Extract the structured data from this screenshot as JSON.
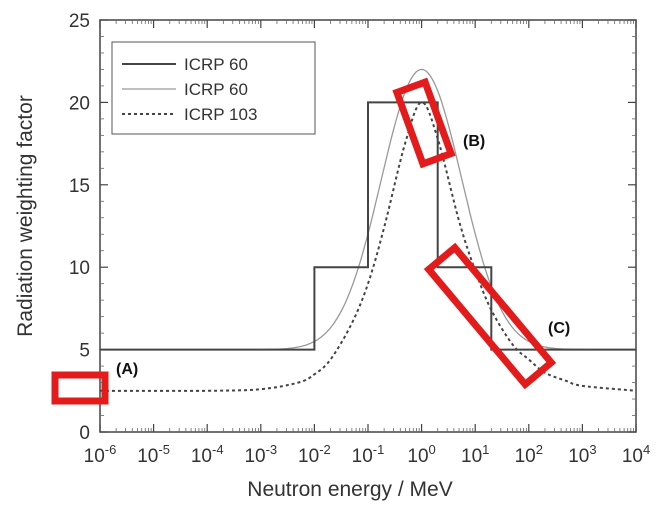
{
  "chart_data": {
    "type": "line",
    "title": "",
    "xlabel": "Neutron energy / MeV",
    "ylabel": "Radiation weighting factor",
    "x_scale": "log",
    "xlim": [
      1e-06,
      10000.0
    ],
    "ylim": [
      0,
      25
    ],
    "x_ticks": [
      {
        "value": 1e-06,
        "base": "10",
        "exp": "-6"
      },
      {
        "value": 1e-05,
        "base": "10",
        "exp": "-5"
      },
      {
        "value": 0.0001,
        "base": "10",
        "exp": "-4"
      },
      {
        "value": 0.001,
        "base": "10",
        "exp": "-3"
      },
      {
        "value": 0.01,
        "base": "10",
        "exp": "-2"
      },
      {
        "value": 0.1,
        "base": "10",
        "exp": "-1"
      },
      {
        "value": 1,
        "base": "10",
        "exp": "0"
      },
      {
        "value": 10,
        "base": "10",
        "exp": "1"
      },
      {
        "value": 100,
        "base": "10",
        "exp": "2"
      },
      {
        "value": 1000,
        "base": "10",
        "exp": "3"
      },
      {
        "value": 10000,
        "base": "10",
        "exp": "4"
      }
    ],
    "y_ticks": [
      0,
      5,
      10,
      15,
      20,
      25
    ],
    "grid": false,
    "legend": {
      "position": "top-left",
      "entries": [
        {
          "label": "ICRP 60",
          "style": "solid",
          "color": "#444444"
        },
        {
          "label": "ICRP 60",
          "style": "solid",
          "color": "#999999"
        },
        {
          "label": "ICRP 103",
          "style": "dotted",
          "color": "#444444"
        }
      ]
    },
    "series": [
      {
        "label": "ICRP 60",
        "kind": "step",
        "color": "#444444",
        "x": [
          1e-06,
          0.01,
          0.01,
          0.1,
          0.1,
          2,
          2,
          20,
          20,
          10000
        ],
        "y": [
          5,
          5,
          10,
          10,
          20,
          20,
          10,
          10,
          5,
          5
        ]
      },
      {
        "label": "ICRP 60",
        "kind": "continuous",
        "color": "#999999",
        "formula": "5 + 17*exp(-(ln(E))^2/6)",
        "x": [
          1e-06,
          0.001,
          0.005,
          0.01,
          0.02,
          0.05,
          0.1,
          0.2,
          0.5,
          1,
          2,
          5,
          10,
          20,
          50,
          100,
          1000,
          10000
        ],
        "y": [
          5.0,
          5.0,
          5.1,
          5.3,
          5.9,
          7.6,
          10.0,
          13.2,
          18.6,
          21.9,
          18.6,
          13.2,
          10.0,
          7.6,
          5.9,
          5.3,
          5.0,
          5.0
        ]
      },
      {
        "label": "ICRP 103",
        "kind": "continuous",
        "color": "#444444",
        "x": [
          1e-06,
          0.0001,
          0.001,
          0.005,
          0.01,
          0.02,
          0.05,
          0.1,
          0.2,
          0.5,
          1,
          2,
          5,
          10,
          20,
          50,
          100,
          200,
          500,
          1000,
          10000
        ],
        "y": [
          2.5,
          2.5,
          2.6,
          3.0,
          3.5,
          4.4,
          6.6,
          9.0,
          12.4,
          17.6,
          20.0,
          17.8,
          12.8,
          9.8,
          7.4,
          5.3,
          4.4,
          3.6,
          3.1,
          2.8,
          2.5
        ]
      }
    ],
    "annotations": [
      {
        "label": "(A)",
        "x_range": [
          1e-06,
          1.7e-05
        ],
        "y_range": [
          1.6,
          3.2
        ]
      },
      {
        "label": "(B)",
        "x_range": [
          0.5,
          3.5
        ],
        "y_range": [
          17.5,
          21.0
        ]
      },
      {
        "label": "(C)",
        "x_range": [
          3,
          300
        ],
        "y_range": [
          3.5,
          10.5
        ]
      }
    ]
  }
}
